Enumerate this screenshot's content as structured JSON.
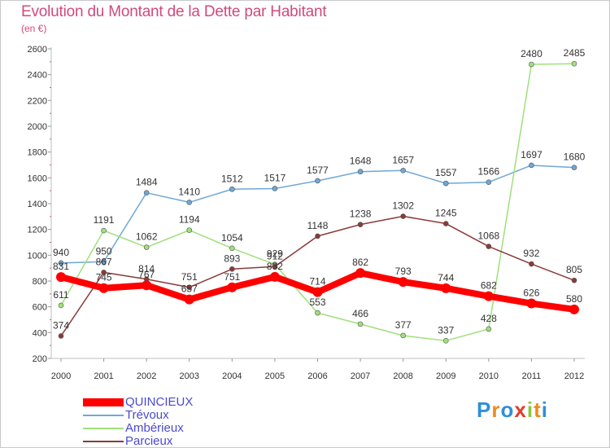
{
  "title": "Evolution du Montant de la Dette par Habitant",
  "subtitle": "(en €)",
  "logo": {
    "text": "Proxiti",
    "letters": [
      {
        "ch": "P",
        "color": "#2f8fd8"
      },
      {
        "ch": "r",
        "color": "#f08a1c"
      },
      {
        "ch": "o",
        "color": "#2f8fd8"
      },
      {
        "ch": "x",
        "color": "#e23a2c"
      },
      {
        "ch": "i",
        "color": "#8dc63f"
      },
      {
        "ch": "t",
        "color": "#f08a1c"
      },
      {
        "ch": "i",
        "color": "#2f8fd8"
      }
    ]
  },
  "chart_data": {
    "type": "line",
    "title": "Evolution du Montant de la Dette par Habitant",
    "subtitle": "(en €)",
    "x": [
      "2000",
      "2001",
      "2002",
      "2003",
      "2004",
      "2005",
      "2006",
      "2007",
      "2008",
      "2009",
      "2010",
      "2011",
      "2012"
    ],
    "ylim": [
      200,
      2600
    ],
    "yticks": [
      200,
      400,
      600,
      800,
      1000,
      1200,
      1400,
      1600,
      1800,
      2000,
      2200,
      2400,
      2600
    ],
    "grid": false,
    "legend_position": "bottom-left",
    "series": [
      {
        "name": "QUINCIEUX",
        "color": "#ff0000",
        "values": [
          831,
          745,
          767,
          657,
          751,
          832,
          714,
          862,
          793,
          744,
          682,
          626,
          580
        ],
        "labels": [
          "831",
          "745",
          "767",
          "657",
          "751",
          "832",
          "714",
          "862",
          "793",
          "744",
          "682",
          "626",
          "580"
        ]
      },
      {
        "name": "Trévoux",
        "color": "#6fa8d6",
        "values": [
          940,
          950,
          1484,
          1410,
          1512,
          1517,
          1577,
          1648,
          1657,
          1557,
          1566,
          1697,
          1680
        ],
        "labels": [
          "940",
          "950",
          "1484",
          "1410",
          "1512",
          "1517",
          "1577",
          "1648",
          "1657",
          "1557",
          "1566",
          "1697",
          "1680"
        ]
      },
      {
        "name": "Ambérieux",
        "color": "#9fe07a",
        "values": [
          611,
          1191,
          1062,
          1194,
          1054,
          929,
          553,
          466,
          377,
          337,
          428,
          2480,
          2485
        ],
        "labels": [
          "611",
          "1191",
          "1062",
          "1194",
          "1054",
          "929",
          "553",
          "466",
          "377",
          "337",
          "428",
          "2480",
          "2485"
        ]
      },
      {
        "name": "Parcieux",
        "color": "#8b3a3a",
        "values": [
          374,
          867,
          814,
          751,
          893,
          912,
          1148,
          1238,
          1302,
          1245,
          1068,
          932,
          805
        ],
        "labels": [
          "374",
          "867",
          "814",
          "751",
          "893",
          "912",
          "1148",
          "1238",
          "1302",
          "1245",
          "1068",
          "932",
          "805"
        ]
      }
    ]
  }
}
